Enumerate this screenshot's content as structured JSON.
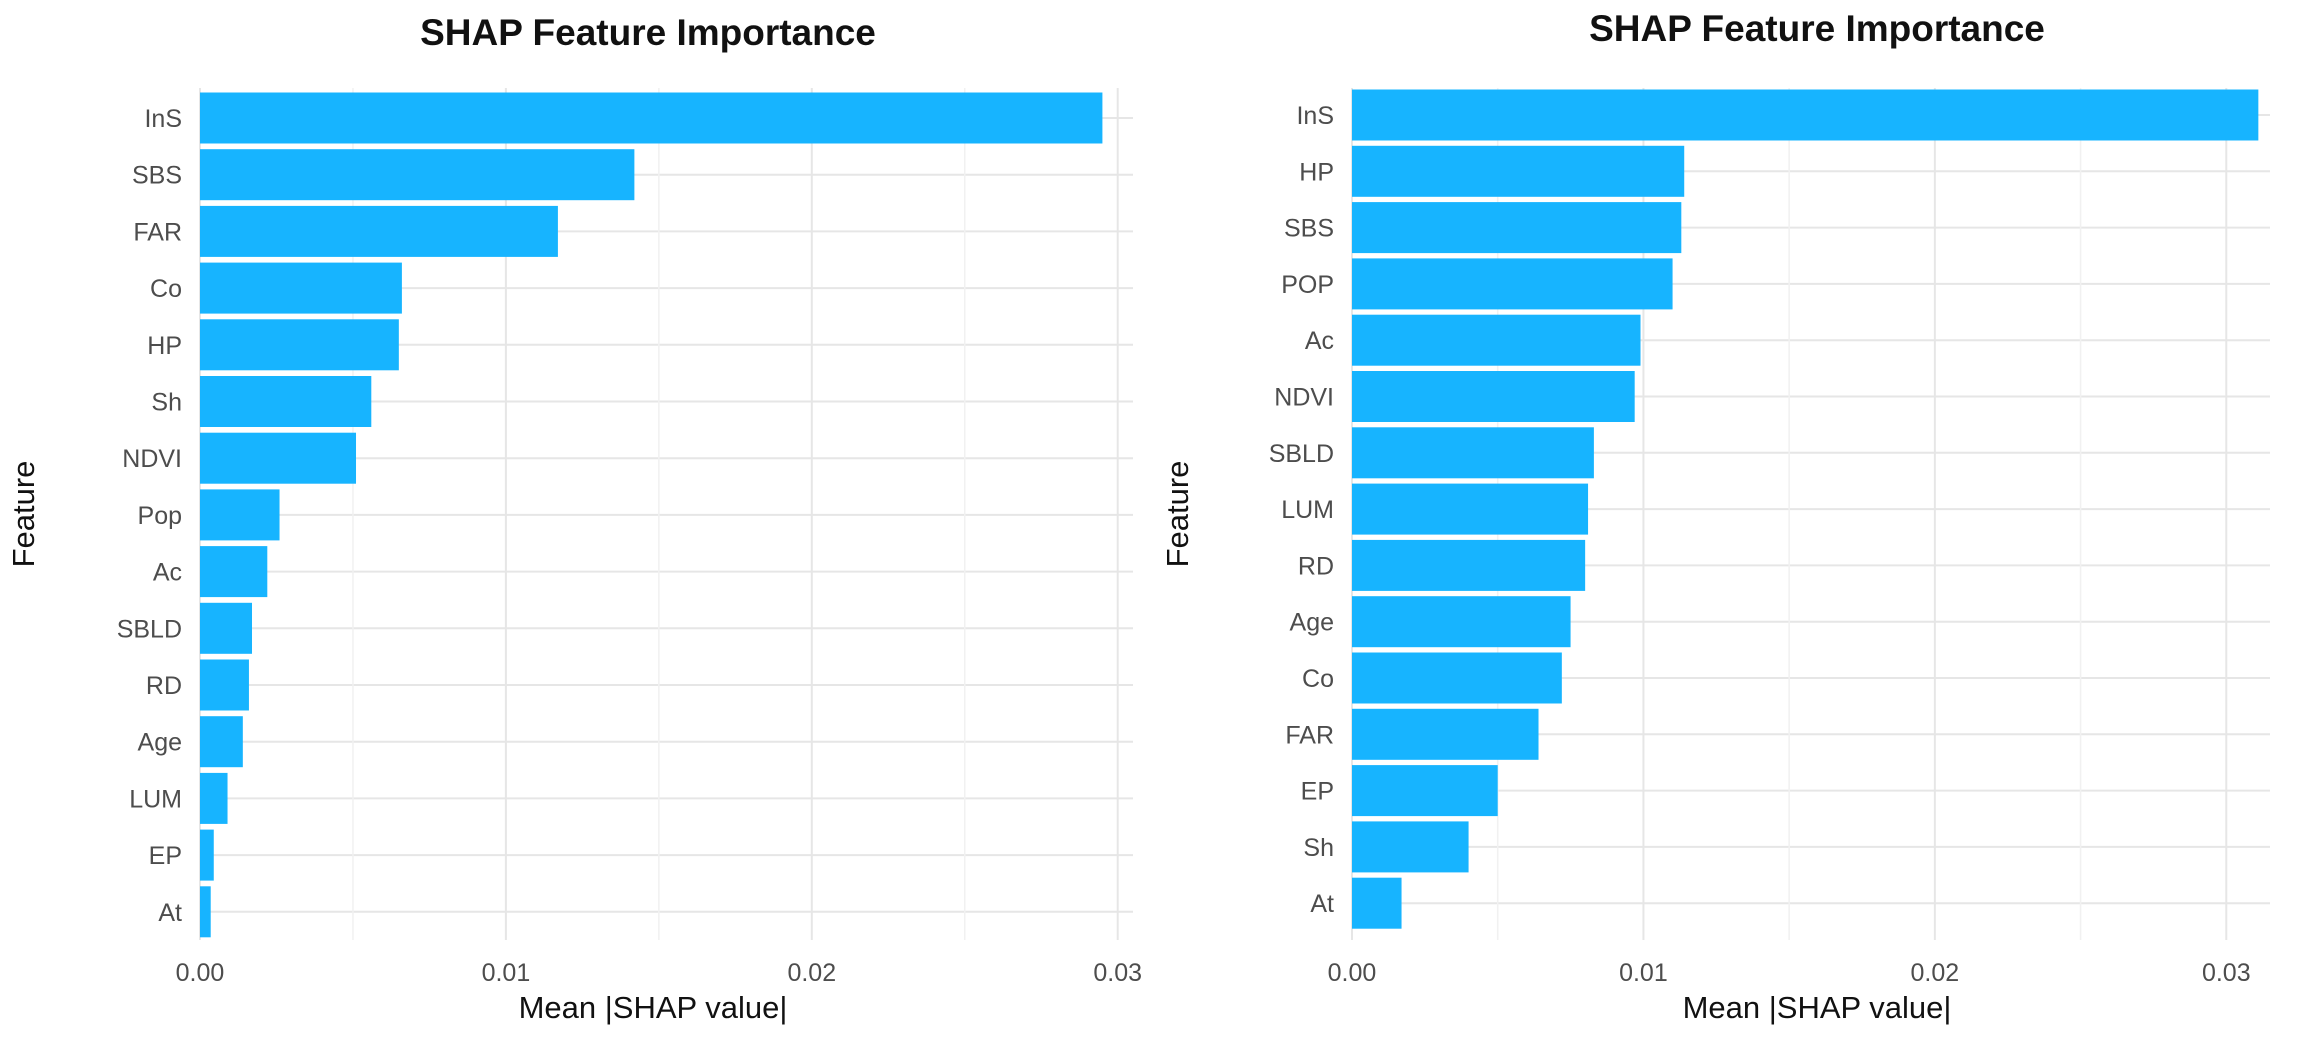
{
  "chart_data": [
    {
      "type": "bar",
      "orientation": "horizontal",
      "title": "SHAP Feature Importance",
      "xlabel": "Mean |SHAP value|",
      "ylabel": "Feature",
      "xlim": [
        0,
        0.0305
      ],
      "xticks": [
        0,
        0.01,
        0.02,
        0.03
      ],
      "xtick_labels": [
        "0.00",
        "0.01",
        "0.02",
        "0.03"
      ],
      "grid": true,
      "color": "#17b4ff",
      "categories": [
        "InS",
        "SBS",
        "FAR",
        "Co",
        "HP",
        "Sh",
        "NDVI",
        "Pop",
        "Ac",
        "SBLD",
        "RD",
        "Age",
        "LUM",
        "EP",
        "At"
      ],
      "values": [
        0.0295,
        0.0142,
        0.0117,
        0.0066,
        0.0065,
        0.0056,
        0.0051,
        0.0026,
        0.0022,
        0.0017,
        0.0016,
        0.0014,
        0.0009,
        0.00045,
        0.00035
      ]
    },
    {
      "type": "bar",
      "orientation": "horizontal",
      "title": "SHAP Feature Importance",
      "xlabel": "Mean |SHAP value|",
      "ylabel": "Feature",
      "xlim": [
        0,
        0.0315
      ],
      "xticks": [
        0,
        0.01,
        0.02,
        0.03
      ],
      "xtick_labels": [
        "0.00",
        "0.01",
        "0.02",
        "0.03"
      ],
      "grid": true,
      "color": "#17b4ff",
      "categories": [
        "InS",
        "HP",
        "SBS",
        "POP",
        "Ac",
        "NDVI",
        "SBLD",
        "LUM",
        "RD",
        "Age",
        "Co",
        "FAR",
        "EP",
        "Sh",
        "At"
      ],
      "values": [
        0.0311,
        0.0114,
        0.0113,
        0.011,
        0.0099,
        0.0097,
        0.0083,
        0.0081,
        0.008,
        0.0075,
        0.0072,
        0.0064,
        0.005,
        0.004,
        0.0017
      ]
    }
  ]
}
